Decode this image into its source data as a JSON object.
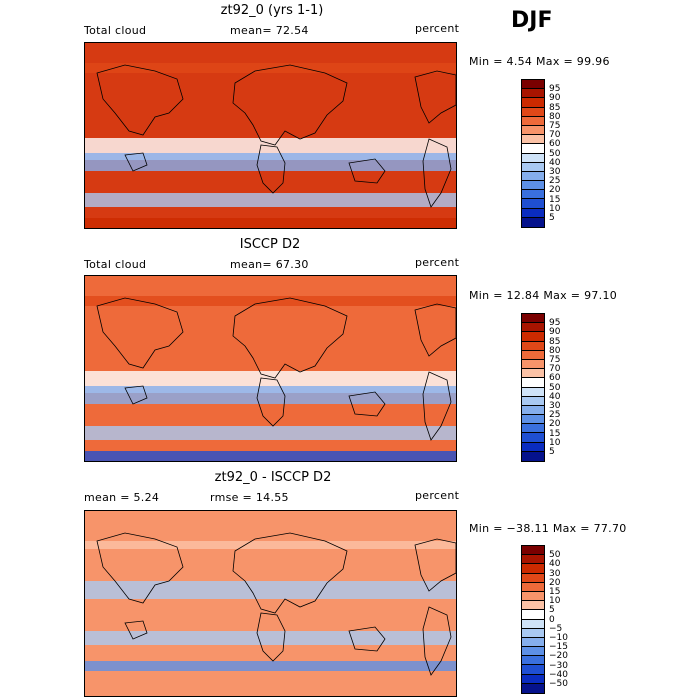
{
  "season": "DJF",
  "panels": [
    {
      "title": "zt92_0 (yrs 1-1)",
      "left_label": "Total cloud",
      "middle_label": "mean=  72.54",
      "right_label": "percent",
      "minmax": "Min =   4.54 Max =  99.96",
      "colorbar": {
        "labels": [
          "95",
          "90",
          "85",
          "80",
          "75",
          "70",
          "60",
          "50",
          "40",
          "30",
          "25",
          "20",
          "15",
          "10",
          "5"
        ],
        "colors": [
          "#7a0000",
          "#a81400",
          "#cc2a00",
          "#e04818",
          "#ee6a3a",
          "#f7946a",
          "#fbc2a6",
          "#ffffff",
          "#cfe3f8",
          "#a9c9f2",
          "#85aeec",
          "#5d90e6",
          "#3a70de",
          "#1f4fd2",
          "#0a2cc0",
          "#05128c"
        ]
      },
      "fill": "#d63a12"
    },
    {
      "title": "ISCCP D2",
      "left_label": "Total cloud",
      "middle_label": "mean=  67.30",
      "right_label": "percent",
      "minmax": "Min =  12.84 Max =  97.10",
      "colorbar": {
        "labels": [
          "95",
          "90",
          "85",
          "80",
          "75",
          "70",
          "60",
          "50",
          "40",
          "30",
          "25",
          "20",
          "15",
          "10",
          "5"
        ],
        "colors": [
          "#7a0000",
          "#a81400",
          "#cc2a00",
          "#e04818",
          "#ee6a3a",
          "#f7946a",
          "#fbc2a6",
          "#ffffff",
          "#cfe3f8",
          "#a9c9f2",
          "#85aeec",
          "#5d90e6",
          "#3a70de",
          "#1f4fd2",
          "#0a2cc0",
          "#05128c"
        ]
      },
      "fill": "#ee6a3a"
    },
    {
      "title": "zt92_0 - ISCCP D2",
      "left_label": "mean =   5.24",
      "middle_label": "rmse =  14.55",
      "right_label": "percent",
      "minmax": "Min = −38.11 Max =  77.70",
      "colorbar": {
        "labels": [
          "50",
          "40",
          "30",
          "20",
          "15",
          "10",
          "5",
          "0",
          "−5",
          "−10",
          "−15",
          "−20",
          "−30",
          "−40",
          "−50"
        ],
        "colors": [
          "#7a0000",
          "#a81400",
          "#cc2a00",
          "#e04818",
          "#ee6a3a",
          "#f7946a",
          "#fbc2a6",
          "#ffffff",
          "#cfe3f8",
          "#a9c9f2",
          "#85aeec",
          "#5d90e6",
          "#3a70de",
          "#1f4fd2",
          "#0a2cc0",
          "#05128c"
        ]
      },
      "fill": "#f7946a"
    }
  ]
}
